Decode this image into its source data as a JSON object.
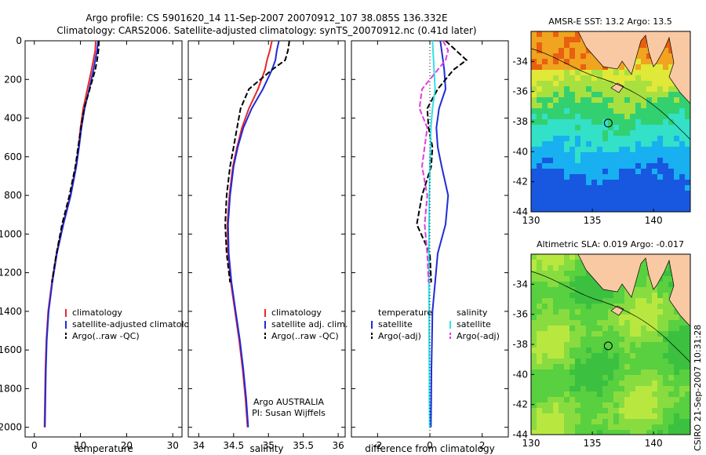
{
  "title_line1": "Argo profile: CS 5901620_14 11-Sep-2007 20070912_107 38.085S 136.332E",
  "title_line2": "Climatology: CARS2006. Satellite-adjusted climatology: synTS_20070912.nc (0.41d later)",
  "side_label": "CSIRO 21-Sep-2007 10:31:28",
  "colors": {
    "red": "#e8262a",
    "blue": "#1f2bd8",
    "black": "#000000",
    "cyan": "#33e0e8",
    "magenta": "#e23be0",
    "land": "#f9c9a4"
  },
  "chart_data": [
    {
      "type": "line",
      "id": "temperature",
      "xlabel": "temperature",
      "xlim": [
        -2,
        32
      ],
      "ylim": [
        2050,
        0
      ],
      "xticks": [
        "0",
        "10",
        "20",
        "30"
      ],
      "yticks": [
        "0",
        "200",
        "400",
        "600",
        "800",
        "1000",
        "1200",
        "1400",
        "1600",
        "1800",
        "2000"
      ],
      "legend": [
        "climatology",
        "satellite-adjusted climatology",
        "Argo(..raw -QC)"
      ],
      "series": [
        {
          "name": "climatology",
          "color": "red",
          "x": [
            13.3,
            13.2,
            12.8,
            12.4,
            11.5,
            10.6,
            10.0,
            9.6,
            9.0,
            7.8,
            6.2,
            4.8,
            3.8,
            3.0,
            2.6,
            2.4,
            2.3,
            2.2
          ],
          "y": [
            0,
            50,
            100,
            150,
            250,
            350,
            450,
            550,
            650,
            800,
            950,
            1100,
            1250,
            1400,
            1550,
            1700,
            1850,
            2000
          ]
        },
        {
          "name": "satellite-adjusted climatology",
          "color": "blue",
          "x": [
            13.8,
            13.6,
            13.2,
            12.8,
            11.9,
            10.9,
            10.2,
            9.7,
            9.1,
            7.9,
            6.3,
            4.9,
            3.9,
            3.1,
            2.7,
            2.5,
            2.4,
            2.3
          ],
          "y": [
            0,
            50,
            100,
            150,
            250,
            350,
            450,
            550,
            650,
            800,
            950,
            1100,
            1250,
            1400,
            1550,
            1700,
            1850,
            2000
          ]
        },
        {
          "name": "Argo(..raw -QC)",
          "color": "black",
          "dash": true,
          "x": [
            14.0,
            13.9,
            13.6,
            13.2,
            12.0,
            10.8,
            10.1,
            9.5,
            8.9,
            7.6,
            6.0,
            4.8,
            3.8
          ],
          "y": [
            0,
            50,
            100,
            150,
            250,
            350,
            450,
            550,
            650,
            800,
            950,
            1100,
            1250
          ]
        }
      ]
    },
    {
      "type": "line",
      "id": "salinity",
      "xlabel": "salinity",
      "xlim": [
        33.85,
        36.1
      ],
      "ylim": [
        2050,
        0
      ],
      "xticks": [
        "34",
        "34.5",
        "35",
        "35.5",
        "36"
      ],
      "legend": [
        "climatology",
        "satellite adj. clim.",
        "Argo(..raw -QC)"
      ],
      "note_lines": [
        "Argo AUSTRALIA",
        "PI: Susan Wijffels"
      ],
      "series": [
        {
          "name": "climatology",
          "color": "red",
          "x": [
            35.05,
            35.02,
            34.98,
            34.95,
            34.85,
            34.72,
            34.62,
            34.55,
            34.49,
            34.44,
            34.41,
            34.42,
            34.46,
            34.52,
            34.58,
            34.63,
            34.67,
            34.7
          ],
          "y": [
            0,
            50,
            100,
            150,
            250,
            350,
            450,
            550,
            650,
            800,
            950,
            1100,
            1250,
            1400,
            1550,
            1700,
            1850,
            2000
          ]
        },
        {
          "name": "satellite adj. clim.",
          "color": "blue",
          "x": [
            35.15,
            35.12,
            35.1,
            35.05,
            34.92,
            34.76,
            34.64,
            34.56,
            34.5,
            34.45,
            34.42,
            34.43,
            34.47,
            34.53,
            34.59,
            34.64,
            34.68,
            34.71
          ],
          "y": [
            0,
            50,
            100,
            150,
            250,
            350,
            450,
            550,
            650,
            800,
            950,
            1100,
            1250,
            1400,
            1550,
            1700,
            1850,
            2000
          ]
        },
        {
          "name": "Argo(..raw -QC)",
          "color": "black",
          "dash": true,
          "x": [
            35.3,
            35.28,
            35.24,
            35.05,
            34.72,
            34.6,
            34.55,
            34.5,
            34.45,
            34.4,
            34.38,
            34.4,
            34.45
          ],
          "y": [
            0,
            50,
            100,
            150,
            250,
            350,
            450,
            550,
            650,
            800,
            950,
            1100,
            1250
          ]
        }
      ]
    },
    {
      "type": "line",
      "id": "difference",
      "xlabel": "difference from climatology",
      "xlim": [
        -3,
        3
      ],
      "ylim": [
        2050,
        0
      ],
      "xticks": [
        "-2",
        "0",
        "2"
      ],
      "legend_left": {
        "header": "temperature",
        "items": [
          "satellite",
          "Argo(-adj)"
        ]
      },
      "legend_right": {
        "header": "salinity",
        "items": [
          "satellite",
          "Argo(-adj)"
        ]
      },
      "series": [
        {
          "name": "temperature satellite",
          "color": "blue",
          "x": [
            0.4,
            0.45,
            0.5,
            0.55,
            0.6,
            0.35,
            0.25,
            0.3,
            0.45,
            0.7,
            0.6,
            0.3,
            0.2,
            0.1,
            0.08,
            0.06,
            0.05,
            0.04
          ],
          "y": [
            0,
            50,
            100,
            150,
            250,
            350,
            450,
            550,
            650,
            800,
            950,
            1100,
            1250,
            1400,
            1550,
            1700,
            1850,
            2000
          ]
        },
        {
          "name": "temperature Argo(-adj)",
          "color": "black",
          "dash": true,
          "x": [
            0.6,
            1.0,
            1.4,
            0.9,
            0.3,
            -0.1,
            -0.05,
            0.1,
            0.05,
            -0.3,
            -0.5,
            0.0,
            0.05
          ],
          "y": [
            0,
            50,
            100,
            150,
            250,
            350,
            450,
            550,
            650,
            800,
            950,
            1100,
            1250
          ]
        },
        {
          "name": "salinity satellite",
          "color": "cyan",
          "x": [
            0.1,
            0.12,
            0.14,
            0.16,
            0.2,
            0.1,
            0.04,
            0.02,
            0.0,
            -0.02,
            -0.03,
            -0.04,
            -0.04,
            -0.03,
            -0.03,
            -0.02,
            -0.02,
            -0.01
          ],
          "y": [
            0,
            50,
            100,
            150,
            250,
            350,
            450,
            550,
            650,
            800,
            950,
            1100,
            1250,
            1400,
            1550,
            1700,
            1850,
            2000
          ]
        },
        {
          "name": "salinity Argo(-adj)",
          "color": "magenta",
          "dash": true,
          "x": [
            0.5,
            0.7,
            0.6,
            0.3,
            -0.3,
            -0.4,
            -0.1,
            -0.2,
            -0.3,
            -0.1,
            -0.2,
            -0.1,
            -0.05
          ],
          "y": [
            0,
            50,
            100,
            150,
            250,
            350,
            450,
            550,
            650,
            800,
            950,
            1100,
            1250
          ]
        },
        {
          "name": "zero",
          "color": "black",
          "dotted": true,
          "x": [
            0,
            0
          ],
          "y": [
            0,
            2050
          ]
        }
      ]
    },
    {
      "type": "heatmap",
      "id": "sst_map",
      "title": "AMSR-E SST: 13.2 Argo: 13.5",
      "xlim": [
        130,
        143
      ],
      "ylim": [
        -44,
        -32
      ],
      "xticks": [
        "130",
        "135",
        "140"
      ],
      "yticks": [
        "-34",
        "-36",
        "-38",
        "-40",
        "-42",
        "-44"
      ],
      "marker": {
        "lon": 136.3,
        "lat": -38.1
      }
    },
    {
      "type": "heatmap",
      "id": "sla_map",
      "title": "Altimetric SLA: 0.019 Argo: -0.017",
      "xlim": [
        130,
        143
      ],
      "ylim": [
        -44,
        -32
      ],
      "xticks": [
        "130",
        "135",
        "140"
      ],
      "yticks": [
        "-34",
        "-36",
        "-38",
        "-40",
        "-42",
        "-44"
      ],
      "marker": {
        "lon": 136.3,
        "lat": -38.1
      }
    }
  ]
}
